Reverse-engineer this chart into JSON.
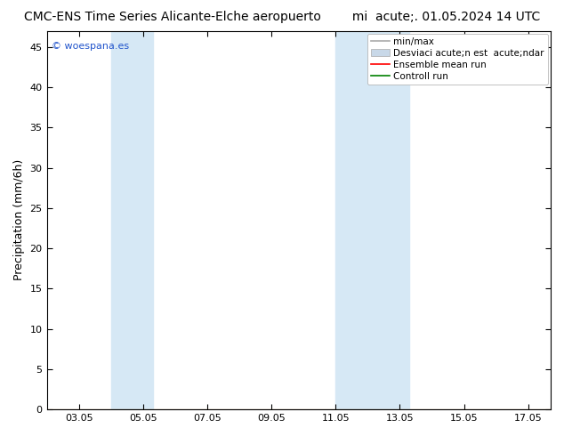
{
  "title": "CMC-ENS Time Series Alicante-Elche aeropuerto        mi  acute;. 01.05.2024 14 UTC",
  "ylabel": "Precipitation (mm/6h)",
  "watermark": "© woespana.es",
  "ylim": [
    0,
    47
  ],
  "yticks": [
    0,
    5,
    10,
    15,
    20,
    25,
    30,
    35,
    40,
    45
  ],
  "xtick_positions": [
    3,
    5,
    7,
    9,
    11,
    13,
    15,
    17
  ],
  "xtick_labels": [
    "03.05",
    "05.05",
    "07.05",
    "09.05",
    "11.05",
    "13.05",
    "15.05",
    "17.05"
  ],
  "shade1_start": 4.0,
  "shade1_end": 5.3,
  "shade2_start": 11.0,
  "shade2_end": 13.3,
  "shade_color": "#d6e8f5",
  "legend_labels": [
    "min/max",
    "Desviaci acute;n est  acute;ndar",
    "Ensemble mean run",
    "Controll run"
  ],
  "legend_colors": [
    "#aaaaaa",
    "#c8d8e8",
    "#ff0000",
    "#008000"
  ],
  "bg_color": "#ffffff",
  "xlim_start": 2.0,
  "xlim_end": 17.7,
  "title_fontsize": 10,
  "axis_label_fontsize": 9,
  "tick_fontsize": 8,
  "legend_fontsize": 7.5
}
